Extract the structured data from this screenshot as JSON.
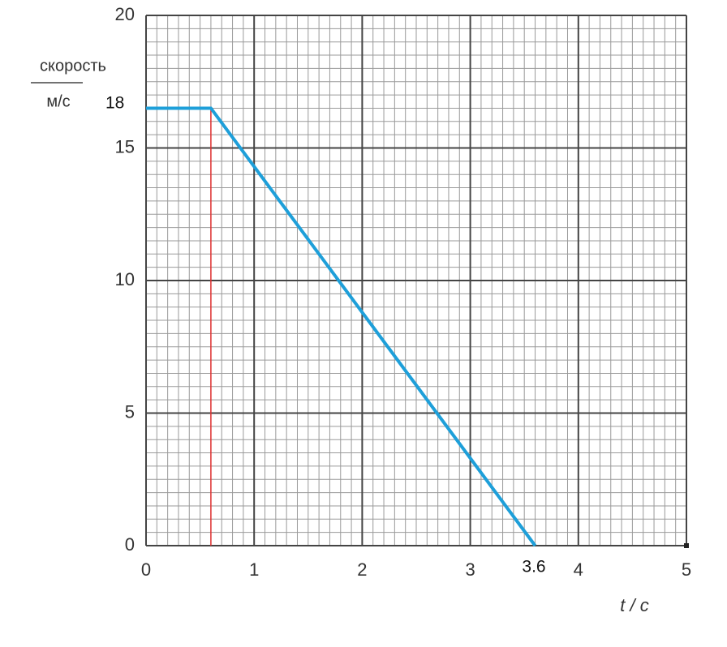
{
  "chart_data": {
    "type": "line",
    "x_label": "t / c",
    "y_label": {
      "top": "скорость",
      "bottom": "м/с"
    },
    "x": [
      0,
      0.6,
      3.6
    ],
    "series": [
      {
        "color": "#1e9fd9",
        "values": [
          16.5,
          16.5,
          0
        ]
      }
    ],
    "xlim": [
      0,
      5
    ],
    "xticks": [
      0,
      1,
      2,
      3,
      4,
      5
    ],
    "ylim": [
      0,
      20
    ],
    "yticks": [
      0,
      5,
      10,
      15,
      20
    ],
    "grid": true,
    "minor_grid": {
      "x": 0.1,
      "y": 0.5
    },
    "vline": {
      "x": 0.6,
      "color": "#e03030"
    },
    "annotations": [
      "18",
      "3.6"
    ]
  }
}
